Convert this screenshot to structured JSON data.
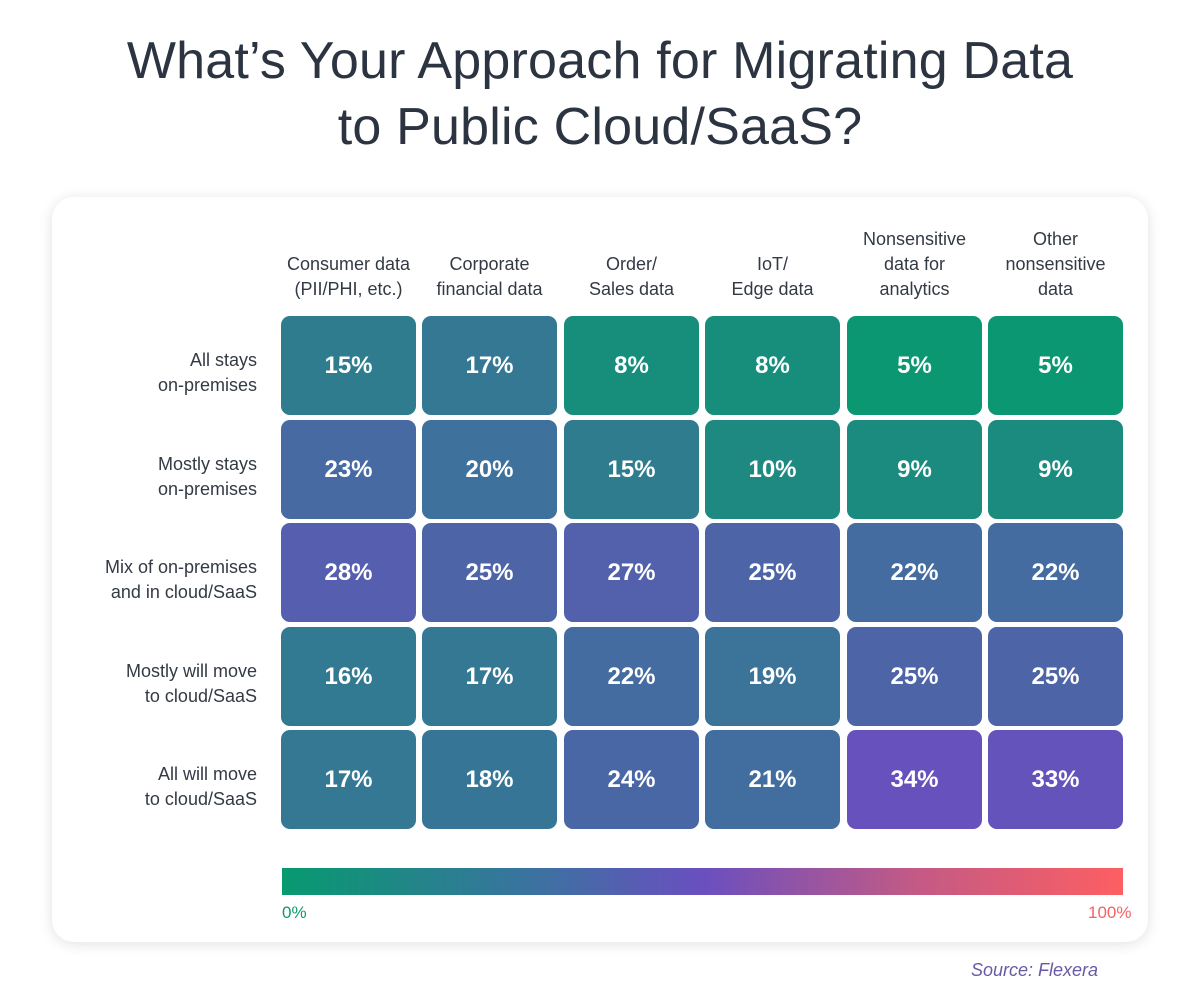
{
  "title_lines": [
    "What’s Your Approach for Migrating Data",
    "to Public Cloud/SaaS?"
  ],
  "chart_data": {
    "type": "heatmap",
    "title": "What’s Your Approach for Migrating Data to Public Cloud/SaaS?",
    "columns": [
      {
        "lines": [
          "Consumer data",
          "(PII/PHI, etc.)"
        ]
      },
      {
        "lines": [
          "Corporate",
          "financial data"
        ]
      },
      {
        "lines": [
          "Order/",
          "Sales data"
        ]
      },
      {
        "lines": [
          "IoT/",
          "Edge data"
        ]
      },
      {
        "lines": [
          "Nonsensitive",
          "data for",
          "analytics"
        ]
      },
      {
        "lines": [
          "Other",
          "nonsensitive",
          "data"
        ]
      }
    ],
    "rows": [
      {
        "lines": [
          "All stays",
          "on-premises"
        ],
        "values": [
          15,
          17,
          8,
          8,
          5,
          5
        ]
      },
      {
        "lines": [
          "Mostly stays",
          "on-premises"
        ],
        "values": [
          23,
          20,
          15,
          10,
          9,
          9
        ]
      },
      {
        "lines": [
          "Mix of on-premises",
          "and in cloud/SaaS"
        ],
        "values": [
          28,
          25,
          27,
          25,
          22,
          22
        ]
      },
      {
        "lines": [
          "Mostly will move",
          "to cloud/SaaS"
        ],
        "values": [
          16,
          17,
          22,
          19,
          25,
          25
        ]
      },
      {
        "lines": [
          "All will move",
          "to cloud/SaaS"
        ],
        "values": [
          17,
          18,
          24,
          21,
          34,
          33
        ]
      }
    ],
    "value_suffix": "%",
    "color_scale": {
      "min_label": "0%",
      "max_label": "100%",
      "min_color": "#079a6f",
      "mid_color": "#6a4fbf",
      "max_color": "#fd5f62"
    }
  },
  "source": "Source: Flexera"
}
